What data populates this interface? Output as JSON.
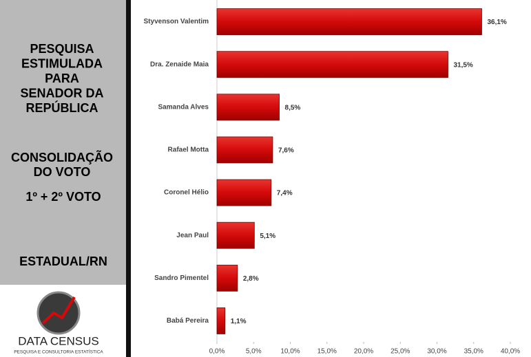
{
  "sidebar": {
    "title_lines": [
      "PESQUISA",
      "ESTIMULADA",
      "PARA",
      "SENADOR DA",
      "REPÚBLICA"
    ],
    "subtitle_lines": [
      "CONSOLIDAÇÃO",
      "DO VOTO"
    ],
    "vote": "1º + 2º VOTO",
    "region": "ESTADUAL/RN",
    "logo_name": "DATA CENSUS",
    "logo_tagline": "PESQUISA E CONSULTORIA ESTATÍSTICA"
  },
  "chart_data": {
    "type": "hbar",
    "categories": [
      "Styvenson Valentim",
      "Dra. Zenaide Maia",
      "Samanda Alves",
      "Rafael Motta",
      "Coronel Hélio",
      "Jean Paul",
      "Sandro Pimentel",
      "Babá Pereira"
    ],
    "values": [
      36.1,
      31.5,
      8.5,
      7.6,
      7.4,
      5.1,
      2.8,
      1.1
    ],
    "value_labels": [
      "36,1%",
      "31,5%",
      "8,5%",
      "7,6%",
      "7,4%",
      "5,1%",
      "2,8%",
      "1,1%"
    ],
    "color": "#d40a0a",
    "xlim": [
      0,
      40
    ],
    "xticks": [
      {
        "value": 0,
        "label": "0,0%"
      },
      {
        "value": 5,
        "label": "5,0%"
      },
      {
        "value": 10,
        "label": "10,0%"
      },
      {
        "value": 15,
        "label": "15,0%"
      },
      {
        "value": 20,
        "label": "20,0%"
      },
      {
        "value": 25,
        "label": "25,0%"
      },
      {
        "value": 30,
        "label": "30,0%"
      },
      {
        "value": 35,
        "label": "35,0%"
      },
      {
        "value": 40,
        "label": "40,0%"
      }
    ]
  }
}
